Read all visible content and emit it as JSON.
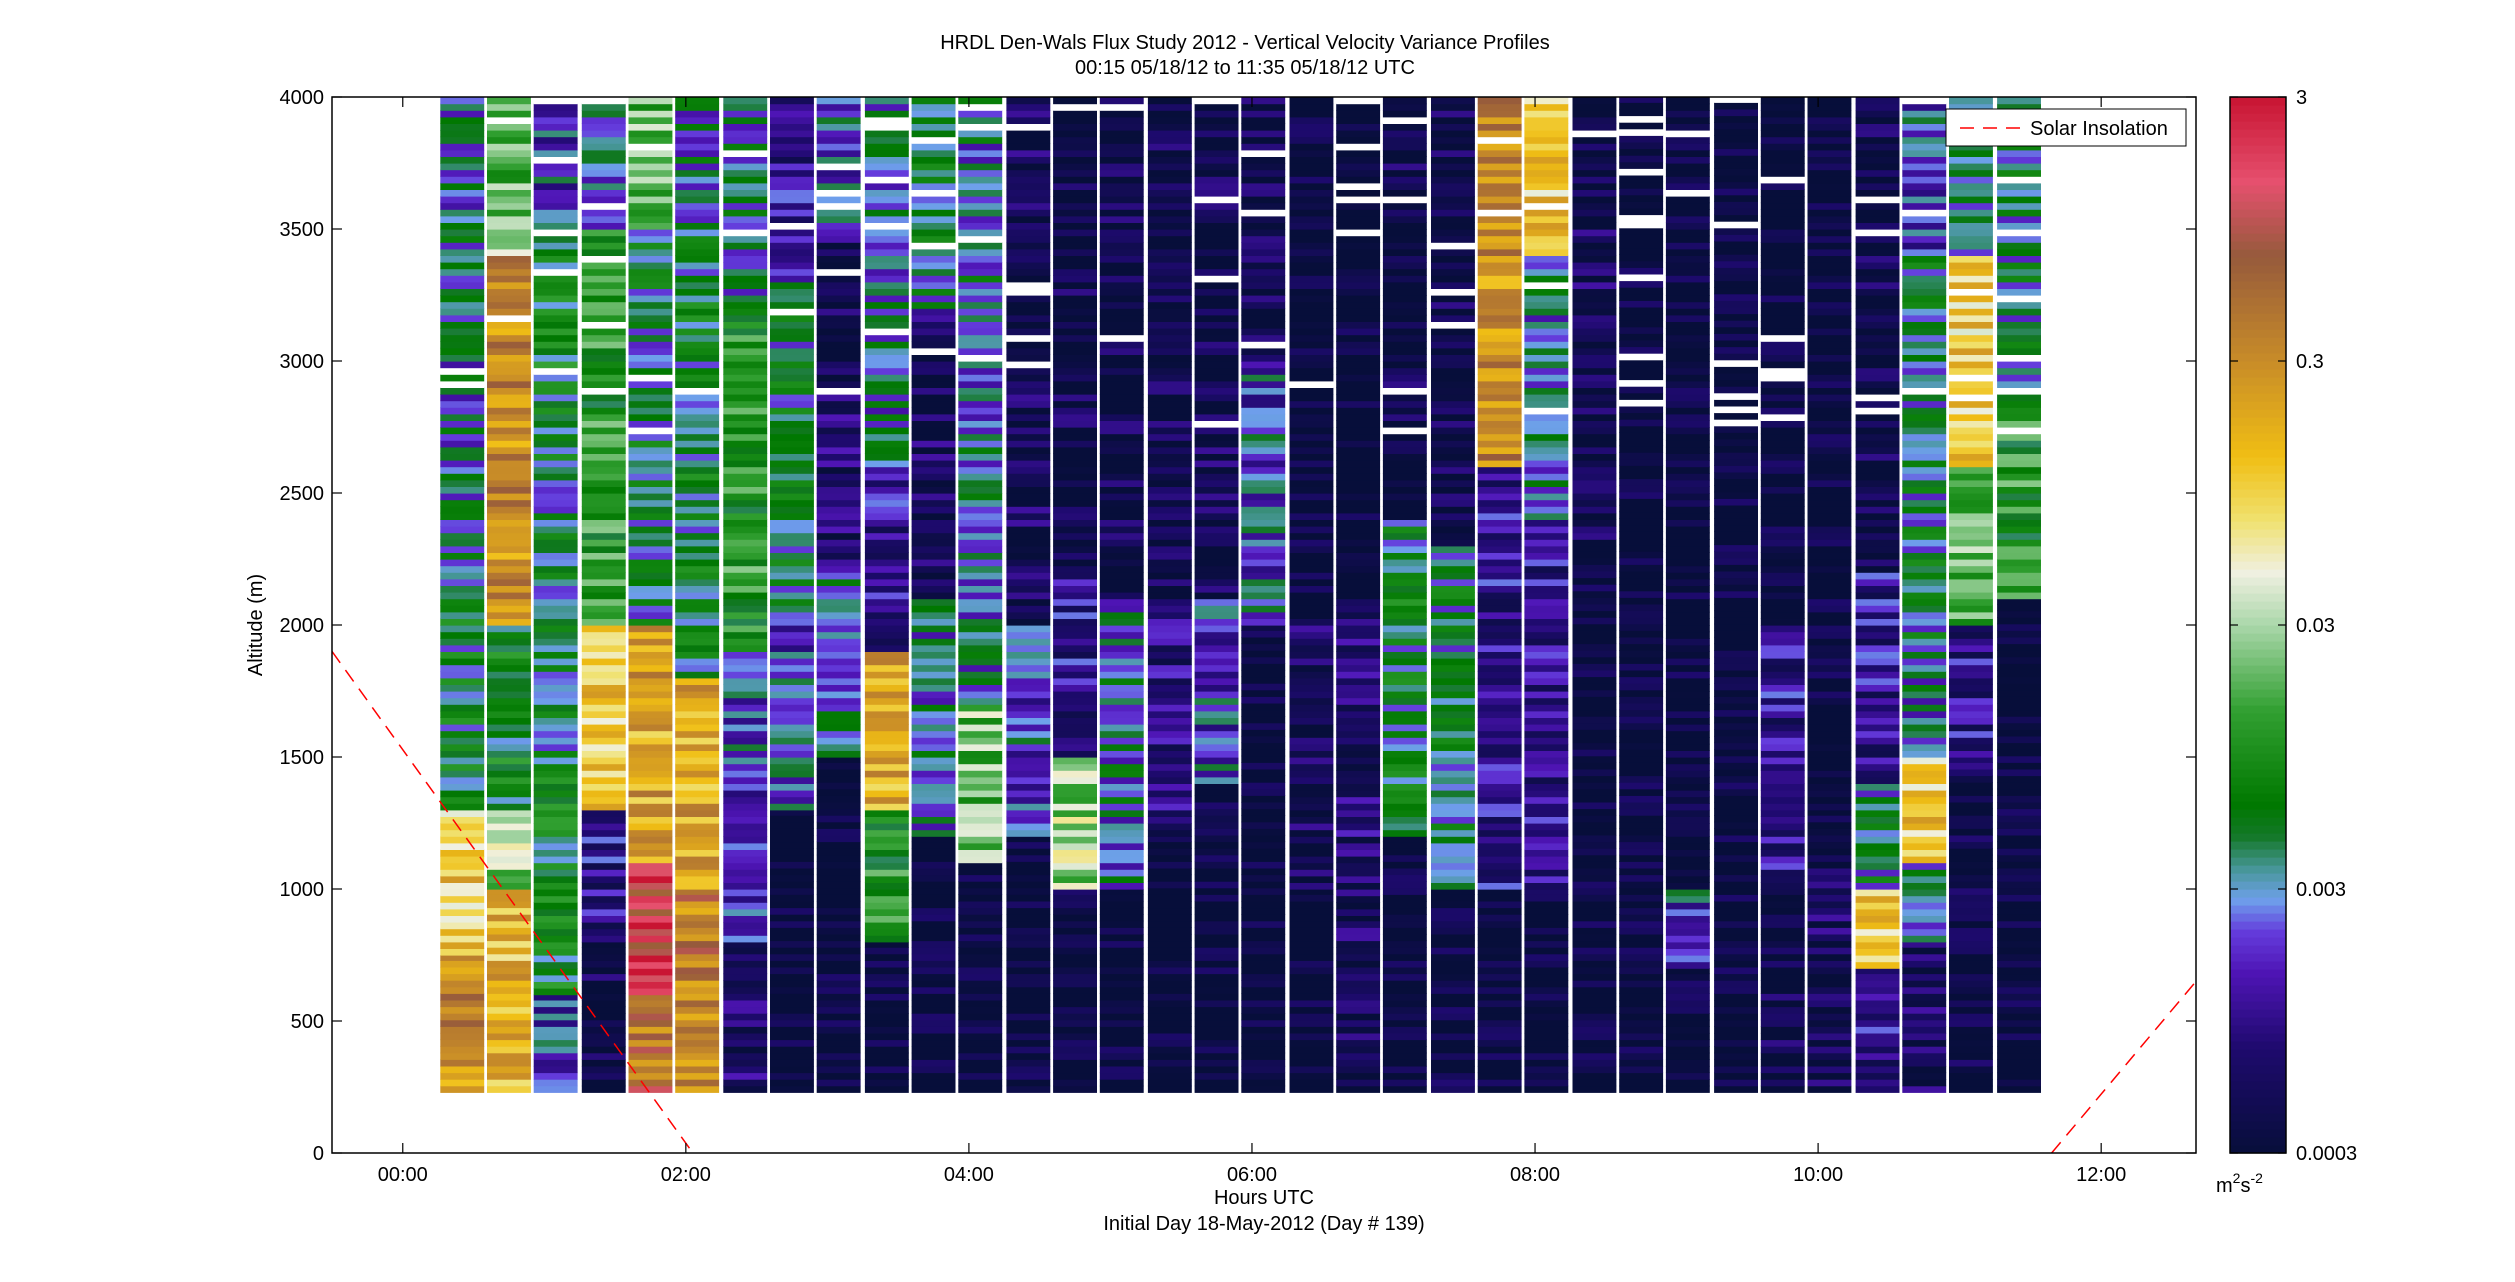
{
  "chart_data": {
    "type": "heatmap",
    "title": "HRDL Den-Wals Flux Study 2012 - Vertical Velocity Variance Profiles",
    "subtitle": "00:15 05/18/12 to 11:35 05/18/12  UTC",
    "xlabel": "Hours UTC",
    "xlabel2": "Initial Day 18-May-2012 (Day # 139)",
    "ylabel": "Altitude (m)",
    "xlim": [
      -0.5,
      12.67
    ],
    "ylim": [
      0,
      4000
    ],
    "x_ticks": [
      0,
      2,
      4,
      6,
      8,
      10,
      12
    ],
    "x_tick_labels": [
      "00:00",
      "02:00",
      "04:00",
      "06:00",
      "08:00",
      "10:00",
      "12:00"
    ],
    "y_ticks": [
      0,
      500,
      1000,
      1500,
      2000,
      2500,
      3000,
      3500,
      4000
    ],
    "y_tick_labels": [
      "0",
      "500",
      "1000",
      "1500",
      "2000",
      "2500",
      "3000",
      "3500",
      "4000"
    ],
    "colorbar": {
      "scale": "log",
      "range": [
        0.0003,
        3
      ],
      "ticks": [
        0.0003,
        0.003,
        0.03,
        0.3,
        3
      ],
      "tick_labels": [
        "0.0003",
        "0.003",
        "0.03",
        "0.3",
        "3"
      ],
      "units_base": "m",
      "units_exp1": "2",
      "units_mid": "s",
      "units_exp2": "-2"
    },
    "legend": {
      "placement": "top-right",
      "entries": [
        {
          "label": "Solar Insolation",
          "color": "#ff0000",
          "style": "dashed"
        }
      ]
    },
    "profile_times_hours": [
      0.42,
      0.75,
      1.08,
      1.42,
      1.75,
      2.08,
      2.42,
      2.75,
      3.08,
      3.42,
      3.75,
      4.08,
      4.42,
      4.75,
      5.08,
      5.42,
      5.75,
      6.08,
      6.42,
      6.75,
      7.08,
      7.42,
      7.75,
      8.08,
      8.42,
      8.75,
      9.08,
      9.42,
      9.75,
      10.08,
      10.42,
      10.75,
      11.08,
      11.42
    ],
    "altitude_levels_m": [
      230,
      4000
    ],
    "profiles": [
      {
        "t": 0.42,
        "segments": [
          [
            230,
            750,
            0.3
          ],
          [
            750,
            1300,
            0.1
          ],
          [
            1300,
            2200,
            0.005
          ],
          [
            2200,
            4000,
            0.003
          ]
        ]
      },
      {
        "t": 0.75,
        "segments": [
          [
            230,
            1000,
            0.15
          ],
          [
            1000,
            1300,
            0.03
          ],
          [
            1300,
            2000,
            0.006
          ],
          [
            2000,
            3400,
            0.3
          ],
          [
            3400,
            4000,
            0.02
          ]
        ]
      },
      {
        "t": 1.08,
        "segments": [
          [
            230,
            600,
            0.002
          ],
          [
            600,
            1500,
            0.006
          ],
          [
            1500,
            2600,
            0.004
          ],
          [
            2600,
            3500,
            0.006
          ],
          [
            3500,
            4000,
            0.002
          ]
        ]
      },
      {
        "t": 1.42,
        "segments": [
          [
            230,
            800,
            0.0004
          ],
          [
            800,
            1300,
            0.001
          ],
          [
            1300,
            2000,
            0.1
          ],
          [
            2000,
            3500,
            0.01
          ],
          [
            3500,
            4000,
            0.003
          ]
        ]
      },
      {
        "t": 1.75,
        "segments": [
          [
            230,
            600,
            0.5
          ],
          [
            600,
            1100,
            1.5
          ],
          [
            1100,
            2000,
            0.2
          ],
          [
            2000,
            3500,
            0.004
          ],
          [
            3500,
            4000,
            0.02
          ]
        ]
      },
      {
        "t": 2.08,
        "segments": [
          [
            230,
            1000,
            0.4
          ],
          [
            1000,
            1800,
            0.2
          ],
          [
            1800,
            3500,
            0.005
          ],
          [
            3500,
            4000,
            0.003
          ]
        ]
      },
      {
        "t": 2.42,
        "segments": [
          [
            230,
            800,
            0.0006
          ],
          [
            800,
            1900,
            0.002
          ],
          [
            1900,
            3200,
            0.01
          ],
          [
            3200,
            4000,
            0.003
          ]
        ]
      },
      {
        "t": 2.75,
        "segments": [
          [
            230,
            1300,
            0.0003
          ],
          [
            1300,
            2000,
            0.002
          ],
          [
            2000,
            3300,
            0.004
          ],
          [
            3300,
            4000,
            0.001
          ]
        ]
      },
      {
        "t": 3.08,
        "segments": [
          [
            230,
            1500,
            0.0003
          ],
          [
            1500,
            2200,
            0.003
          ],
          [
            2200,
            3500,
            0.0006
          ],
          [
            3500,
            4000,
            0.002
          ]
        ]
      },
      {
        "t": 3.42,
        "segments": [
          [
            230,
            800,
            0.0003
          ],
          [
            800,
            1300,
            0.01
          ],
          [
            1300,
            1900,
            0.2
          ],
          [
            1900,
            2600,
            0.001
          ],
          [
            2600,
            4000,
            0.003
          ]
        ]
      },
      {
        "t": 3.75,
        "segments": [
          [
            230,
            1200,
            0.0003
          ],
          [
            1200,
            2100,
            0.003
          ],
          [
            2100,
            3200,
            0.0005
          ],
          [
            3200,
            4000,
            0.004
          ]
        ]
      },
      {
        "t": 4.08,
        "segments": [
          [
            230,
            1100,
            0.0003
          ],
          [
            1100,
            1700,
            0.02
          ],
          [
            1700,
            2800,
            0.003
          ],
          [
            2800,
            4000,
            0.003
          ]
        ]
      },
      {
        "t": 4.42,
        "segments": [
          [
            230,
            1200,
            0.0003
          ],
          [
            1200,
            2000,
            0.002
          ],
          [
            2000,
            4000,
            0.0005
          ]
        ]
      },
      {
        "t": 4.75,
        "segments": [
          [
            230,
            1000,
            0.0003
          ],
          [
            1000,
            1500,
            0.03
          ],
          [
            1500,
            2200,
            0.001
          ],
          [
            2200,
            4000,
            0.0004
          ]
        ]
      },
      {
        "t": 5.08,
        "segments": [
          [
            230,
            1000,
            0.0003
          ],
          [
            1000,
            2100,
            0.003
          ],
          [
            2100,
            4000,
            0.0004
          ]
        ]
      },
      {
        "t": 5.42,
        "segments": [
          [
            230,
            1200,
            0.0003
          ],
          [
            1200,
            2100,
            0.0008
          ],
          [
            2100,
            4000,
            0.0004
          ]
        ]
      },
      {
        "t": 5.75,
        "segments": [
          [
            230,
            1400,
            0.0003
          ],
          [
            1400,
            2100,
            0.002
          ],
          [
            2100,
            3100,
            0.0005
          ],
          [
            3100,
            4000,
            0.0004
          ]
        ]
      },
      {
        "t": 6.08,
        "segments": [
          [
            230,
            2000,
            0.0003
          ],
          [
            2000,
            3000,
            0.002
          ],
          [
            3000,
            4000,
            0.0004
          ]
        ]
      },
      {
        "t": 6.42,
        "segments": [
          [
            230,
            1000,
            0.0003
          ],
          [
            1000,
            2000,
            0.0005
          ],
          [
            2000,
            4000,
            0.0003
          ]
        ]
      },
      {
        "t": 6.75,
        "segments": [
          [
            230,
            900,
            0.0005
          ],
          [
            900,
            2100,
            0.0007
          ],
          [
            2100,
            4000,
            0.0003
          ]
        ]
      },
      {
        "t": 7.08,
        "segments": [
          [
            230,
            1200,
            0.0003
          ],
          [
            1200,
            2400,
            0.005
          ],
          [
            2400,
            4000,
            0.0004
          ]
        ]
      },
      {
        "t": 7.42,
        "segments": [
          [
            230,
            1000,
            0.0004
          ],
          [
            1000,
            2300,
            0.004
          ],
          [
            2300,
            4000,
            0.0004
          ]
        ]
      },
      {
        "t": 7.75,
        "segments": [
          [
            230,
            1000,
            0.0003
          ],
          [
            1000,
            2600,
            0.001
          ],
          [
            2600,
            4000,
            0.3
          ]
        ]
      },
      {
        "t": 8.08,
        "segments": [
          [
            230,
            1000,
            0.0003
          ],
          [
            1000,
            2400,
            0.001
          ],
          [
            2400,
            3400,
            0.003
          ],
          [
            3400,
            4000,
            0.1
          ]
        ]
      },
      {
        "t": 8.42,
        "segments": [
          [
            230,
            2300,
            0.0003
          ],
          [
            2300,
            3500,
            0.0005
          ],
          [
            3500,
            4000,
            0.0004
          ]
        ]
      },
      {
        "t": 8.75,
        "segments": [
          [
            230,
            4000,
            0.0003
          ]
        ]
      },
      {
        "t": 9.08,
        "segments": [
          [
            230,
            700,
            0.0003
          ],
          [
            700,
            1000,
            0.002
          ],
          [
            1000,
            4000,
            0.0003
          ]
        ]
      },
      {
        "t": 9.42,
        "segments": [
          [
            230,
            4000,
            0.0003
          ]
        ]
      },
      {
        "t": 9.75,
        "segments": [
          [
            230,
            1000,
            0.0004
          ],
          [
            1000,
            2000,
            0.001
          ],
          [
            2000,
            4000,
            0.0003
          ]
        ]
      },
      {
        "t": 10.08,
        "segments": [
          [
            230,
            1300,
            0.0005
          ],
          [
            1300,
            4000,
            0.0003
          ]
        ]
      },
      {
        "t": 10.42,
        "segments": [
          [
            230,
            700,
            0.001
          ],
          [
            700,
            1000,
            0.1
          ],
          [
            1000,
            1400,
            0.004
          ],
          [
            1400,
            2200,
            0.001
          ],
          [
            2200,
            4000,
            0.0004
          ]
        ]
      },
      {
        "t": 10.75,
        "segments": [
          [
            230,
            800,
            0.0005
          ],
          [
            800,
            1100,
            0.003
          ],
          [
            1100,
            1500,
            0.1
          ],
          [
            1500,
            1800,
            0.003
          ],
          [
            1800,
            3400,
            0.004
          ],
          [
            3400,
            4000,
            0.002
          ]
        ]
      },
      {
        "t": 11.08,
        "segments": [
          [
            230,
            1500,
            0.0004
          ],
          [
            1500,
            2000,
            0.001
          ],
          [
            2000,
            2600,
            0.02
          ],
          [
            2600,
            3400,
            0.1
          ],
          [
            3400,
            4000,
            0.003
          ]
        ]
      },
      {
        "t": 11.42,
        "segments": [
          [
            230,
            2100,
            0.0003
          ],
          [
            2100,
            2800,
            0.01
          ],
          [
            2800,
            4000,
            0.004
          ]
        ]
      }
    ],
    "solar_insolation_lines": [
      {
        "x": [
          -0.5,
          2.05
        ],
        "y": [
          1900,
          0
        ]
      },
      {
        "x": [
          11.65,
          12.67
        ],
        "y": [
          0,
          650
        ]
      }
    ]
  }
}
